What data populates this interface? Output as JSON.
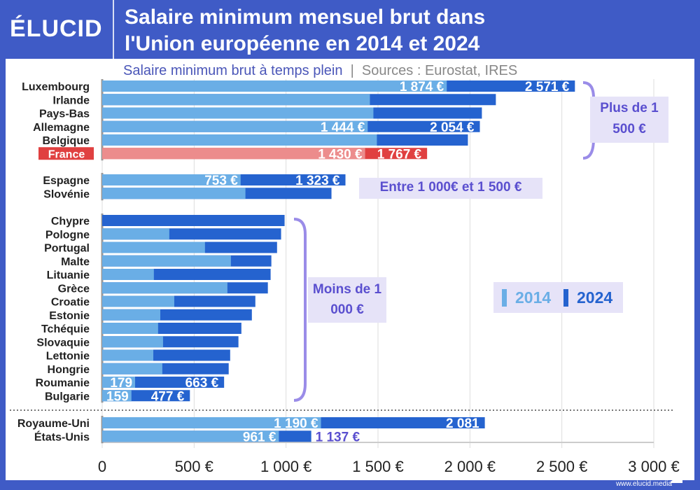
{
  "header": {
    "logo": "ÉLUCID",
    "title_line1": "Salaire minimum mensuel brut dans",
    "title_line2": "l'Union européenne en 2014 et 2024",
    "subtitle": "Salaire minimum brut à temps plein",
    "sources": "Sources : Eurostat, IRES",
    "url": "www.elucid.media"
  },
  "annotations": {
    "high": "Plus de 1 500 €",
    "mid": "Entre 1 000€ et 1 500 €",
    "low": "Moins de 1 000 €"
  },
  "colors": {
    "2014": "#6AAEE6",
    "2024": "#2563CF",
    "france_2014": "#EC8C8C",
    "france_2024": "#E04040",
    "annotation": "#5A4FCF",
    "bracket": "#9A8CE8"
  },
  "chart_data": {
    "type": "bar",
    "orientation": "horizontal",
    "stacked_overlay": true,
    "xlim": [
      0,
      3000
    ],
    "xticks": [
      "0",
      "500 €",
      "1 000 €",
      "1 500 €",
      "2 000 €",
      "2 500 €",
      "3 000 €"
    ],
    "grid": true,
    "legend": {
      "position": "right",
      "entries": [
        "2014",
        "2024"
      ]
    },
    "groups": [
      {
        "rows": [
          {
            "country": "Luxembourg",
            "v2014": 1874,
            "v2024": 2571,
            "l2014": "1 874 €",
            "l2024": "2 571 €"
          },
          {
            "country": "Irlande",
            "v2014": 1456,
            "v2024": 2141
          },
          {
            "country": "Pays-Bas",
            "v2014": 1475,
            "v2024": 2065
          },
          {
            "country": "Allemagne",
            "v2014": 1444,
            "v2024": 2054,
            "l2014": "1 444 €",
            "l2024": "2 054 €"
          },
          {
            "country": "Belgique",
            "v2014": 1494,
            "v2024": 1989
          },
          {
            "country": "France",
            "v2014": 1430,
            "v2024": 1767,
            "l2014": "1 430 €",
            "l2024": "1 767 €",
            "highlight": true
          }
        ]
      },
      {
        "rows": [
          {
            "country": "Espagne",
            "v2014": 753,
            "v2024": 1323,
            "l2014": "753 €",
            "l2024": "1 323 €"
          },
          {
            "country": "Slovénie",
            "v2014": 779,
            "v2024": 1247
          }
        ]
      },
      {
        "rows": [
          {
            "country": "Chypre",
            "v2014": 0,
            "v2024": 992
          },
          {
            "country": "Pologne",
            "v2014": 365,
            "v2024": 973
          },
          {
            "country": "Portugal",
            "v2014": 559,
            "v2024": 951
          },
          {
            "country": "Malte",
            "v2014": 700,
            "v2024": 920
          },
          {
            "country": "Lituanie",
            "v2014": 281,
            "v2024": 916
          },
          {
            "country": "Grèce",
            "v2014": 681,
            "v2024": 901
          },
          {
            "country": "Croatie",
            "v2014": 392,
            "v2024": 833
          },
          {
            "country": "Estonie",
            "v2014": 316,
            "v2024": 814
          },
          {
            "country": "Tchéquie",
            "v2014": 304,
            "v2024": 757
          },
          {
            "country": "Slovaquie",
            "v2014": 331,
            "v2024": 741
          },
          {
            "country": "Lettonie",
            "v2014": 278,
            "v2024": 696
          },
          {
            "country": "Hongrie",
            "v2014": 327,
            "v2024": 688
          },
          {
            "country": "Roumanie",
            "v2014": 179,
            "v2024": 663,
            "l2014": "179",
            "l2024": "663 €"
          },
          {
            "country": "Bulgarie",
            "v2014": 159,
            "v2024": 477,
            "l2014": "159",
            "l2024": "477 €"
          }
        ]
      },
      {
        "rows": [
          {
            "country": "Royaume-Uni",
            "v2014": 1190,
            "v2024": 2081,
            "l2014": "1 190 €",
            "l2024": "2 081"
          },
          {
            "country": "États-Unis",
            "v2014": 961,
            "v2024": 1137,
            "l2014": "961 €",
            "l2024": "1 137 €",
            "outside": true
          }
        ]
      }
    ]
  }
}
